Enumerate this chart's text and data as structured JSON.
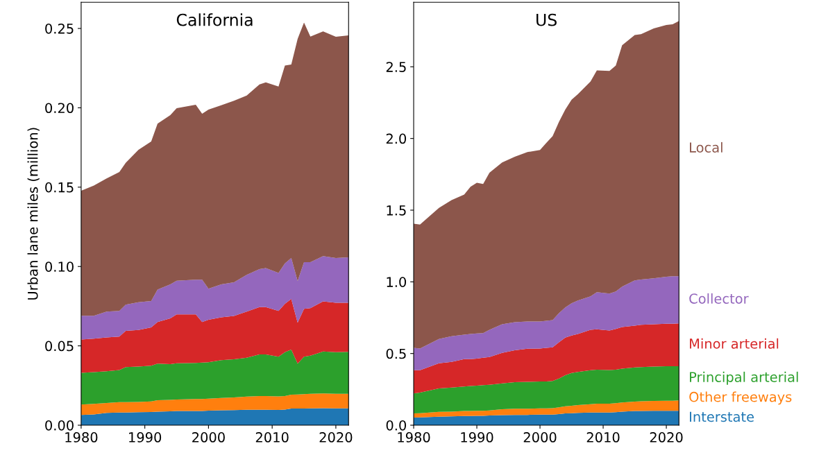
{
  "chart_data": [
    {
      "type": "area",
      "stacked": true,
      "title": "California",
      "ylabel": "Urban lane miles (million)",
      "grid": false,
      "legend": false,
      "x": [
        1980,
        1982,
        1984,
        1986,
        1987,
        1989,
        1991,
        1992,
        1994,
        1995,
        1998,
        1999,
        2000,
        2002,
        2004,
        2006,
        2008,
        2009,
        2011,
        2012,
        2013,
        2014,
        2015,
        2016,
        2018,
        2020,
        2022
      ],
      "xlim": [
        1980,
        2022
      ],
      "xticks": [
        1980,
        1990,
        2000,
        2010,
        2020
      ],
      "ylim": [
        0,
        0.2665
      ],
      "yticks": [
        {
          "value": 0,
          "label": "0.00"
        },
        0.05,
        {
          "value": 0.1,
          "label": "0.10"
        },
        0.15,
        {
          "value": 0.2,
          "label": "0.20"
        },
        0.25
      ],
      "series": [
        {
          "color": "#1f77b4",
          "values": [
            0.0065,
            0.0068,
            0.0078,
            0.008,
            0.008,
            0.0082,
            0.0083,
            0.0085,
            0.0088,
            0.009,
            0.009,
            0.009,
            0.0092,
            0.0094,
            0.0095,
            0.0097,
            0.0097,
            0.0097,
            0.0096,
            0.0098,
            0.0105,
            0.0105,
            0.0105,
            0.0106,
            0.0107,
            0.0106,
            0.0106
          ]
        },
        {
          "color": "#ff7f0e",
          "values": [
            0.0065,
            0.0067,
            0.0062,
            0.0065,
            0.0065,
            0.0065,
            0.0067,
            0.0073,
            0.0072,
            0.0072,
            0.0075,
            0.0075,
            0.0075,
            0.0078,
            0.008,
            0.0083,
            0.0087,
            0.0087,
            0.0086,
            0.0086,
            0.0087,
            0.0089,
            0.0091,
            0.0092,
            0.0093,
            0.0092,
            0.0092
          ]
        },
        {
          "color": "#2ca02c",
          "values": [
            0.02,
            0.02,
            0.02,
            0.0203,
            0.0221,
            0.0223,
            0.0225,
            0.023,
            0.0225,
            0.0228,
            0.0227,
            0.023,
            0.023,
            0.0238,
            0.024,
            0.0245,
            0.0262,
            0.0262,
            0.025,
            0.0276,
            0.0284,
            0.0194,
            0.0236,
            0.024,
            0.0264,
            0.0262,
            0.0264
          ]
        },
        {
          "color": "#d62728",
          "values": [
            0.021,
            0.021,
            0.0213,
            0.021,
            0.0229,
            0.023,
            0.0241,
            0.0262,
            0.0288,
            0.0308,
            0.0306,
            0.0255,
            0.0268,
            0.027,
            0.0273,
            0.0291,
            0.0298,
            0.0298,
            0.0288,
            0.0305,
            0.032,
            0.0258,
            0.0301,
            0.03,
            0.0316,
            0.0312,
            0.031
          ]
        },
        {
          "color": "#9467bd",
          "values": [
            0.015,
            0.0145,
            0.0163,
            0.0162,
            0.0165,
            0.0175,
            0.0166,
            0.0205,
            0.0214,
            0.0212,
            0.0219,
            0.0267,
            0.0195,
            0.0207,
            0.0212,
            0.0232,
            0.0239,
            0.0246,
            0.024,
            0.0255,
            0.0257,
            0.0262,
            0.0294,
            0.0289,
            0.0285,
            0.0281,
            0.0286
          ]
        },
        {
          "color": "#8c564b",
          "values": [
            0.0787,
            0.082,
            0.0839,
            0.0875,
            0.0893,
            0.096,
            0.1006,
            0.1045,
            0.1067,
            0.1088,
            0.1102,
            0.1046,
            0.1129,
            0.1129,
            0.1145,
            0.1129,
            0.1164,
            0.117,
            0.1174,
            0.1246,
            0.122,
            0.1527,
            0.151,
            0.1422,
            0.1417,
            0.1395,
            0.1398
          ]
        }
      ]
    },
    {
      "type": "area",
      "stacked": true,
      "title": "US",
      "grid": false,
      "legend": false,
      "x": [
        1980,
        1981,
        1984,
        1986,
        1988,
        1989,
        1990,
        1991,
        1992,
        1994,
        1996,
        1998,
        2000,
        2001,
        2002,
        2003,
        2004,
        2005,
        2006,
        2008,
        2009,
        2011,
        2012,
        2013,
        2015,
        2016,
        2018,
        2020,
        2021,
        2022
      ],
      "xlim": [
        1980,
        2022
      ],
      "xticks": [
        1980,
        1990,
        2000,
        2010,
        2020
      ],
      "ylim": [
        0,
        2.95
      ],
      "yticks": [
        {
          "value": 0,
          "label": "0.0"
        },
        0.5,
        {
          "value": 1,
          "label": "1.0"
        },
        1.5,
        {
          "value": 2,
          "label": "2.0"
        },
        2.5
      ],
      "series": [
        {
          "name": "Interstate",
          "color": "#1f77b4",
          "values": [
            0.053,
            0.054,
            0.06,
            0.062,
            0.064,
            0.064,
            0.066,
            0.066,
            0.068,
            0.07,
            0.072,
            0.072,
            0.074,
            0.074,
            0.074,
            0.078,
            0.082,
            0.084,
            0.086,
            0.088,
            0.089,
            0.089,
            0.091,
            0.095,
            0.099,
            0.099,
            0.101,
            0.101,
            0.101,
            0.101
          ]
        },
        {
          "name": "Other freeways",
          "color": "#ff7f0e",
          "values": [
            0.029,
            0.03,
            0.033,
            0.033,
            0.035,
            0.035,
            0.035,
            0.035,
            0.035,
            0.041,
            0.043,
            0.043,
            0.043,
            0.043,
            0.045,
            0.047,
            0.05,
            0.052,
            0.054,
            0.058,
            0.061,
            0.061,
            0.063,
            0.063,
            0.066,
            0.068,
            0.068,
            0.07,
            0.07,
            0.072
          ]
        },
        {
          "name": "Principal arterial",
          "color": "#2ca02c",
          "values": [
            0.14,
            0.144,
            0.164,
            0.168,
            0.171,
            0.175,
            0.175,
            0.179,
            0.179,
            0.181,
            0.185,
            0.187,
            0.188,
            0.188,
            0.19,
            0.2,
            0.216,
            0.228,
            0.232,
            0.237,
            0.237,
            0.235,
            0.233,
            0.237,
            0.238,
            0.238,
            0.24,
            0.24,
            0.24,
            0.238
          ]
        },
        {
          "name": "Minor arterial",
          "color": "#d62728",
          "values": [
            0.161,
            0.155,
            0.175,
            0.179,
            0.191,
            0.187,
            0.189,
            0.191,
            0.193,
            0.212,
            0.223,
            0.231,
            0.23,
            0.234,
            0.234,
            0.253,
            0.263,
            0.262,
            0.264,
            0.282,
            0.282,
            0.276,
            0.285,
            0.29,
            0.292,
            0.295,
            0.295,
            0.297,
            0.297,
            0.299
          ]
        },
        {
          "name": "Collector",
          "color": "#9467bd",
          "values": [
            0.156,
            0.152,
            0.169,
            0.179,
            0.171,
            0.175,
            0.175,
            0.171,
            0.19,
            0.2,
            0.195,
            0.191,
            0.189,
            0.189,
            0.19,
            0.204,
            0.21,
            0.224,
            0.234,
            0.234,
            0.259,
            0.257,
            0.261,
            0.282,
            0.315,
            0.316,
            0.321,
            0.327,
            0.331,
            0.329
          ]
        },
        {
          "name": "Local",
          "color": "#8c564b",
          "values": [
            0.866,
            0.864,
            0.915,
            0.949,
            0.977,
            1.027,
            1.051,
            1.041,
            1.096,
            1.129,
            1.154,
            1.181,
            1.196,
            1.241,
            1.284,
            1.333,
            1.381,
            1.42,
            1.439,
            1.498,
            1.547,
            1.553,
            1.576,
            1.683,
            1.712,
            1.712,
            1.742,
            1.757,
            1.757,
            1.78
          ]
        }
      ]
    }
  ]
}
